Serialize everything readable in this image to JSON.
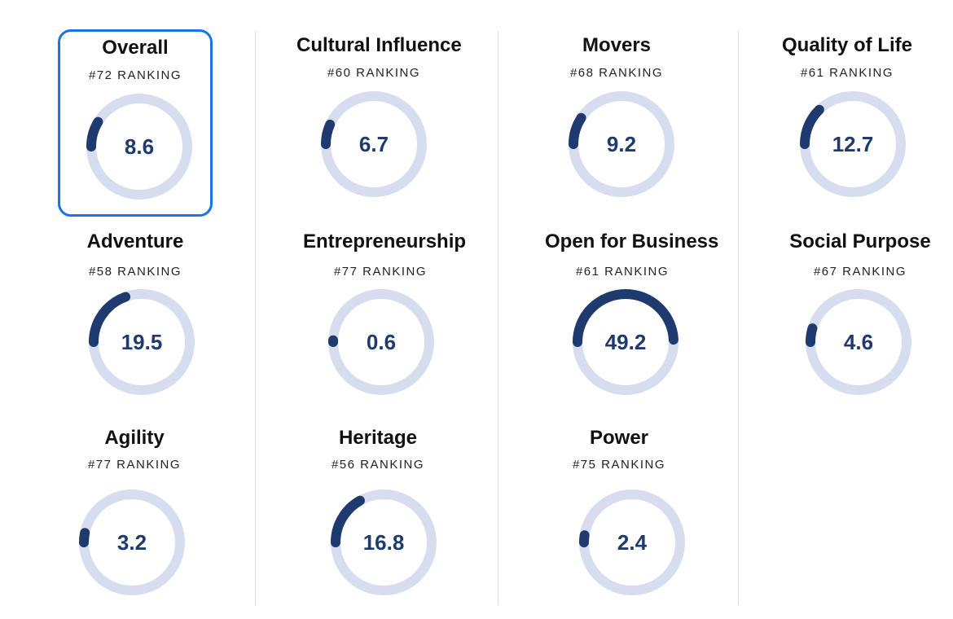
{
  "colors": {
    "track": "#d6ddef",
    "arc": "#1e3a6e",
    "selected_border": "#1a73e8"
  },
  "chart_data": {
    "type": "gauge",
    "max": 100,
    "items": [
      {
        "title": "Overall",
        "rank_label": "#72 RANKING",
        "value": 8.6,
        "value_label": "8.6"
      },
      {
        "title": "Cultural Influence",
        "rank_label": "#60 RANKING",
        "value": 6.7,
        "value_label": "6.7"
      },
      {
        "title": "Movers",
        "rank_label": "#68 RANKING",
        "value": 9.2,
        "value_label": "9.2"
      },
      {
        "title": "Quality of Life",
        "rank_label": "#61 RANKING",
        "value": 12.7,
        "value_label": "12.7"
      },
      {
        "title": "Adventure",
        "rank_label": "#58 RANKING",
        "value": 19.5,
        "value_label": "19.5"
      },
      {
        "title": "Entrepreneurship",
        "rank_label": "#77 RANKING",
        "value": 0.6,
        "value_label": "0.6"
      },
      {
        "title": "Open for Business",
        "rank_label": "#61 RANKING",
        "value": 49.2,
        "value_label": "49.2"
      },
      {
        "title": "Social Purpose",
        "rank_label": "#67 RANKING",
        "value": 4.6,
        "value_label": "4.6"
      },
      {
        "title": "Agility",
        "rank_label": "#77 RANKING",
        "value": 3.2,
        "value_label": "3.2"
      },
      {
        "title": "Heritage",
        "rank_label": "#56 RANKING",
        "value": 16.8,
        "value_label": "16.8"
      },
      {
        "title": "Power",
        "rank_label": "#75 RANKING",
        "value": 2.4,
        "value_label": "2.4"
      }
    ]
  }
}
